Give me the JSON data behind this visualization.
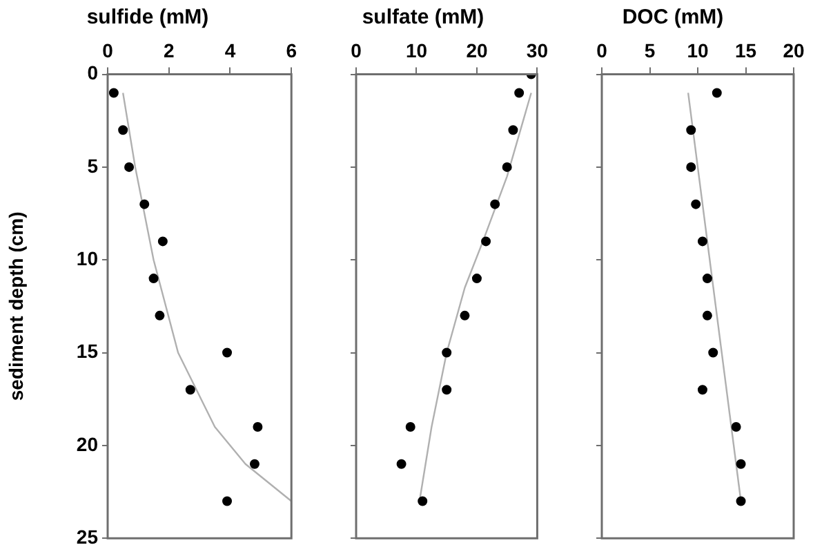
{
  "chart_data": [
    {
      "type": "scatter",
      "title": "sulfide (mM)",
      "ylabel": "sediment depth (cm)",
      "xlim": [
        0,
        6
      ],
      "xticks": [
        0,
        2,
        4,
        6
      ],
      "ylim": [
        25,
        0
      ],
      "yticks": [
        0,
        5,
        10,
        15,
        20,
        25
      ],
      "series": [
        {
          "type": "scatter",
          "marker": "circle",
          "color": "#000000",
          "x": [
            0.2,
            0.5,
            0.7,
            1.2,
            1.8,
            1.5,
            1.7,
            3.9,
            2.7,
            4.9,
            4.8,
            3.9
          ],
          "values": [
            1,
            3,
            5,
            7,
            9,
            11,
            13,
            15,
            17,
            19,
            21,
            23
          ]
        },
        {
          "type": "line",
          "marker": "none",
          "color": "#b0b0b0",
          "x": [
            0.5,
            0.9,
            1.5,
            2.3,
            3.5,
            4.5,
            6
          ],
          "values": [
            1,
            5,
            10,
            15,
            19,
            21,
            23
          ]
        }
      ]
    },
    {
      "type": "scatter",
      "title": "sulfate (mM)",
      "xlim": [
        0,
        30
      ],
      "xticks": [
        0,
        10,
        20,
        30
      ],
      "ylim": [
        25,
        0
      ],
      "yticks": [
        0,
        5,
        10,
        15,
        20,
        25
      ],
      "tick_labels": "x",
      "series": [
        {
          "type": "scatter",
          "marker": "circle",
          "color": "#000000",
          "x": [
            29,
            27,
            26,
            25,
            23,
            21.5,
            20,
            18,
            15,
            15,
            9,
            7.5,
            11
          ],
          "values": [
            0,
            1,
            3,
            5,
            7,
            9,
            11,
            13,
            15,
            17,
            19,
            21,
            23
          ]
        },
        {
          "type": "line",
          "marker": "none",
          "color": "#b0b0b0",
          "x": [
            29,
            25,
            21,
            18,
            15,
            12.5,
            10.5
          ],
          "values": [
            1,
            5.5,
            9,
            11.5,
            15,
            19,
            23
          ]
        }
      ]
    },
    {
      "type": "scatter",
      "title": "DOC (mM)",
      "xlim": [
        0,
        20
      ],
      "xticks": [
        0,
        5,
        10,
        15,
        20
      ],
      "ylim": [
        25,
        0
      ],
      "yticks": [
        0,
        5,
        10,
        15,
        20,
        25
      ],
      "tick_labels": "x",
      "series": [
        {
          "type": "scatter",
          "marker": "circle",
          "color": "#000000",
          "x": [
            12,
            9.3,
            9.3,
            9.8,
            10.5,
            11,
            11,
            11.6,
            10.5,
            14,
            14.5,
            14.5
          ],
          "values": [
            1,
            3,
            5,
            7,
            9,
            11,
            13,
            15,
            17,
            19,
            21,
            23
          ]
        },
        {
          "type": "line",
          "marker": "none",
          "color": "#b0b0b0",
          "x": [
            9,
            14.5
          ],
          "values": [
            1,
            23
          ]
        }
      ]
    }
  ]
}
